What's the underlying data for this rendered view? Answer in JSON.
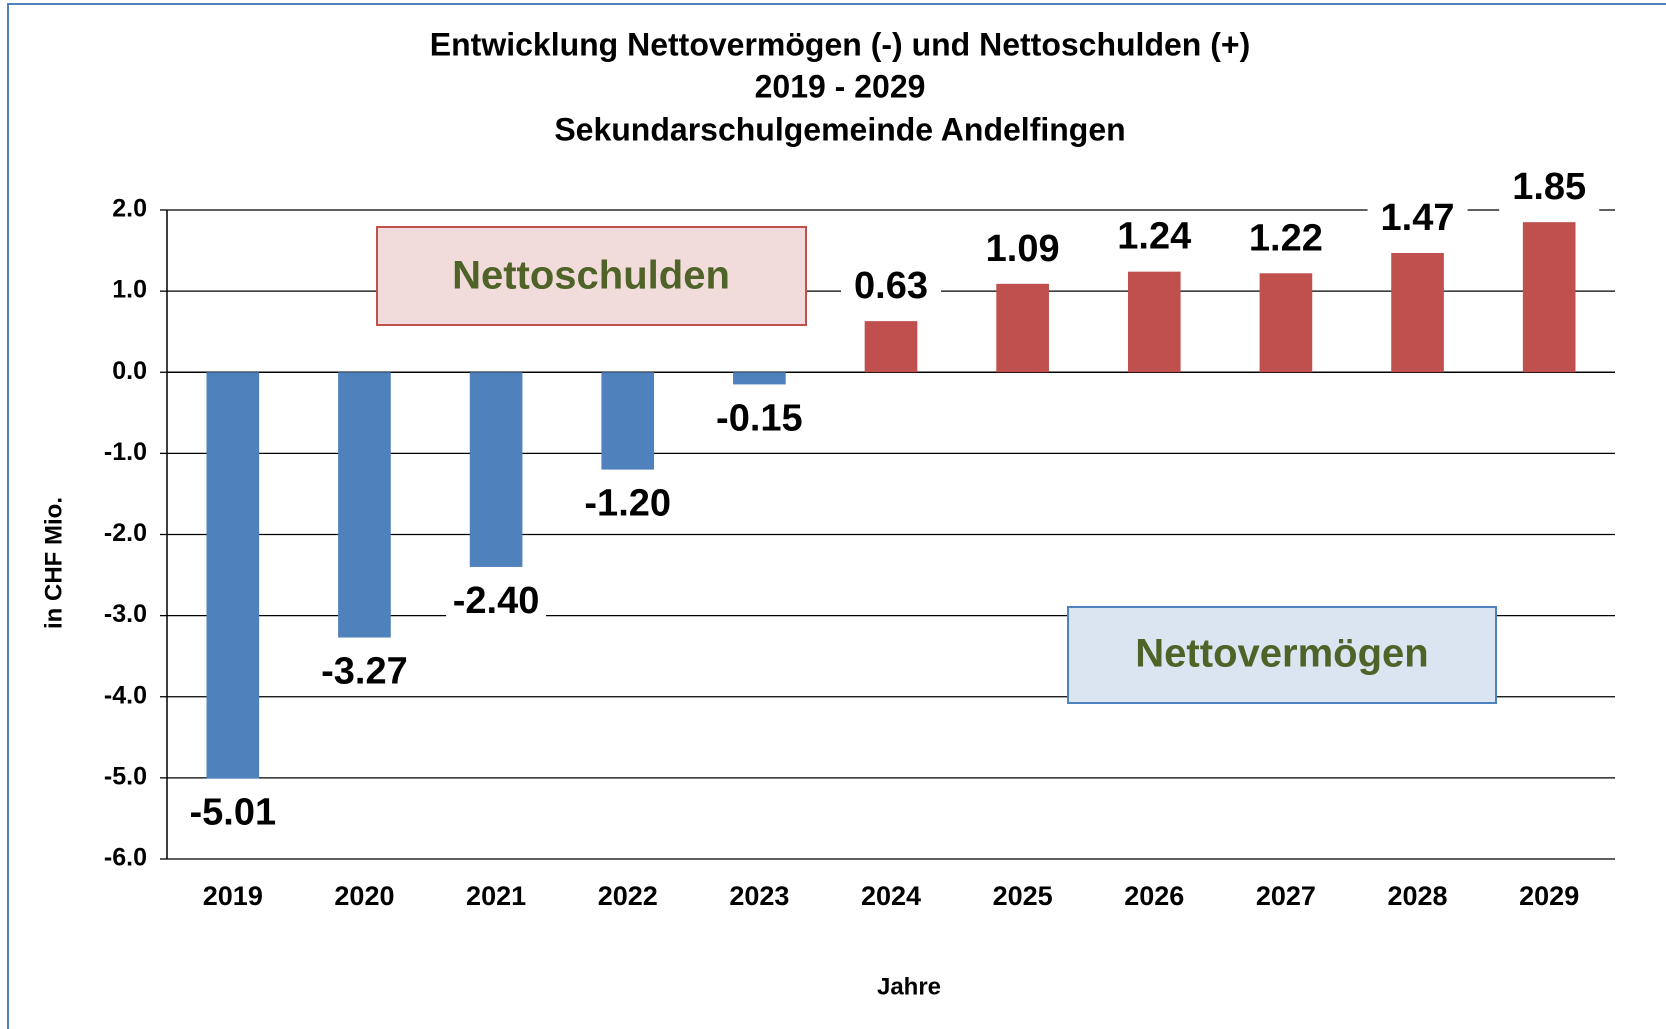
{
  "chart_data": {
    "type": "bar",
    "title": [
      "Entwicklung  Nettovermögen  (-)  und  Nettoschulden  (+)",
      "2019  -  2029",
      "Sekundarschulgemeinde   Andelfingen"
    ],
    "x_label": "Jahre",
    "y_label": "in CHF Mio.",
    "categories": [
      "2019",
      "2020",
      "2021",
      "2022",
      "2023",
      "2024",
      "2025",
      "2026",
      "2027",
      "2028",
      "2029"
    ],
    "values": [
      -5.01,
      -3.27,
      -2.4,
      -1.2,
      -0.15,
      0.63,
      1.09,
      1.24,
      1.22,
      1.47,
      1.85
    ],
    "value_labels": [
      "-5.01",
      "-3.27",
      "-2.40",
      "-1.20",
      "-0.15",
      "0.63",
      "1.09",
      "1.24",
      "1.22",
      "1.47",
      "1.85"
    ],
    "colors": [
      "#4f81bd",
      "#4f81bd",
      "#4f81bd",
      "#4f81bd",
      "#4f81bd",
      "#c0504d",
      "#c0504d",
      "#c0504d",
      "#c0504d",
      "#c0504d",
      "#c0504d"
    ],
    "ylim": [
      -6,
      2
    ],
    "yticks": [
      {
        "value": -6,
        "label": "-6.0"
      },
      {
        "value": -5,
        "label": "-5.0"
      },
      {
        "value": -4,
        "label": "-4.0"
      },
      {
        "value": -3,
        "label": "-3.0"
      },
      {
        "value": -2,
        "label": "-2.0"
      },
      {
        "value": -1,
        "label": "-1.0"
      },
      {
        "value": 0,
        "label": "0.0"
      },
      {
        "value": 1,
        "label": "1.0"
      },
      {
        "value": 2,
        "label": "2.0"
      }
    ],
    "grid": true,
    "annotations": [
      "Nettoschulden",
      "Nettovermögen"
    ]
  }
}
